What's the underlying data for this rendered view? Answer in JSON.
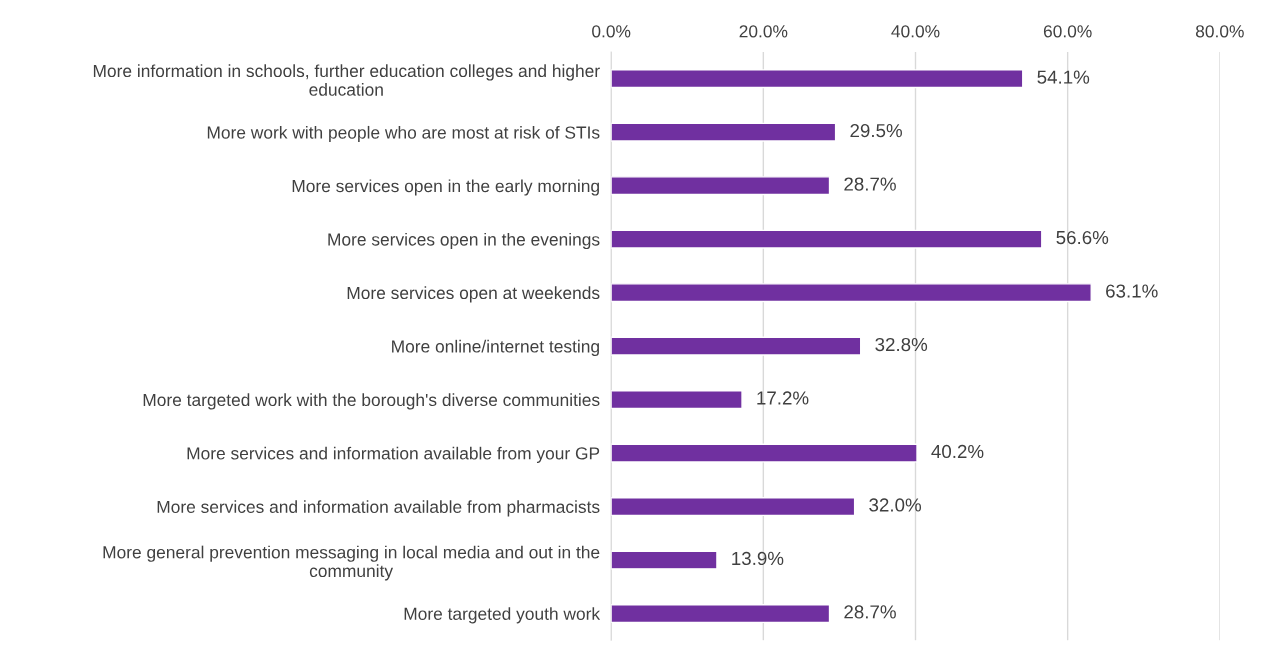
{
  "chart_data": {
    "type": "bar",
    "orientation": "horizontal",
    "categories": [
      "More information in schools, further education colleges and higher\neducation",
      "More work with people who are most at risk of STIs",
      "More services open in the early morning",
      "More services open in the evenings",
      "More services open at weekends",
      "More online/internet testing",
      "More targeted work with the borough's diverse communities",
      "More services and information available from your GP",
      "More services and information available from pharmacists",
      "More general prevention messaging in local media and out in the\ncommunity",
      "More targeted youth work"
    ],
    "values": [
      54.1,
      29.5,
      28.7,
      56.6,
      63.1,
      32.8,
      17.2,
      40.2,
      32.0,
      13.9,
      28.7
    ],
    "value_labels": [
      "54.1%",
      "29.5%",
      "28.7%",
      "56.6%",
      "63.1%",
      "32.8%",
      "17.2%",
      "40.2%",
      "32.0%",
      "13.9%",
      "28.7%"
    ],
    "color": "#7030a0",
    "xlim": [
      0,
      80
    ],
    "xticks": [
      {
        "value": 0,
        "label": "0.0%"
      },
      {
        "value": 20,
        "label": "20.0%"
      },
      {
        "value": 40,
        "label": "40.0%"
      },
      {
        "value": 60,
        "label": "60.0%"
      },
      {
        "value": 80,
        "label": "80.0%"
      }
    ],
    "grid": "x",
    "legend": false
  }
}
